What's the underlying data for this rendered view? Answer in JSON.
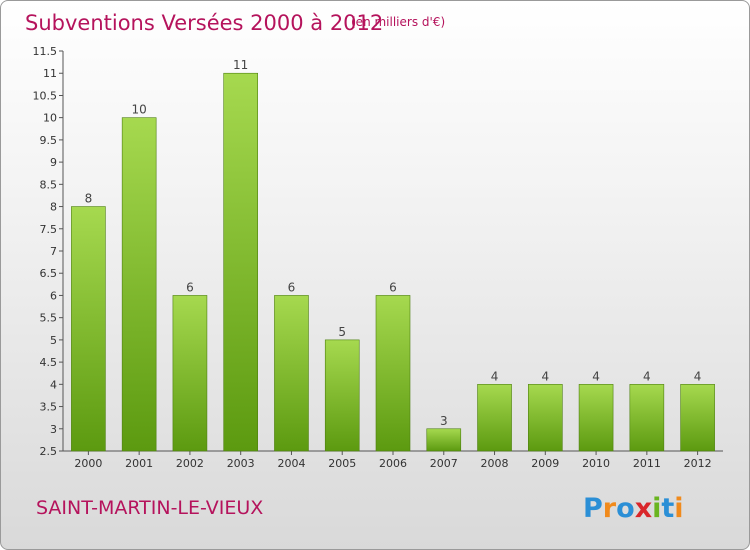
{
  "chart_data": {
    "type": "bar",
    "title": "Subventions Versées 2000 à 2012",
    "unit_note": "(en milliers d'€)",
    "categories": [
      "2000",
      "2001",
      "2002",
      "2003",
      "2004",
      "2005",
      "2006",
      "2007",
      "2008",
      "2009",
      "2010",
      "2011",
      "2012"
    ],
    "values": [
      8,
      10,
      6,
      11,
      6,
      5,
      6,
      3,
      4,
      4,
      4,
      4,
      4
    ],
    "ylim": [
      2.5,
      11.5
    ],
    "yticks": [
      "2.5",
      "3",
      "3.5",
      "4",
      "4.5",
      "5",
      "5.5",
      "6",
      "6.5",
      "7",
      "7.5",
      "8",
      "8.5",
      "9",
      "9.5",
      "10",
      "10.5",
      "11",
      "11.5"
    ],
    "xlabel": "",
    "ylabel": "",
    "grid": false,
    "bar_color": "#7bbf2a"
  },
  "footer": {
    "place": "SAINT-MARTIN-LE-VIEUX",
    "logo": "Proxiti"
  }
}
